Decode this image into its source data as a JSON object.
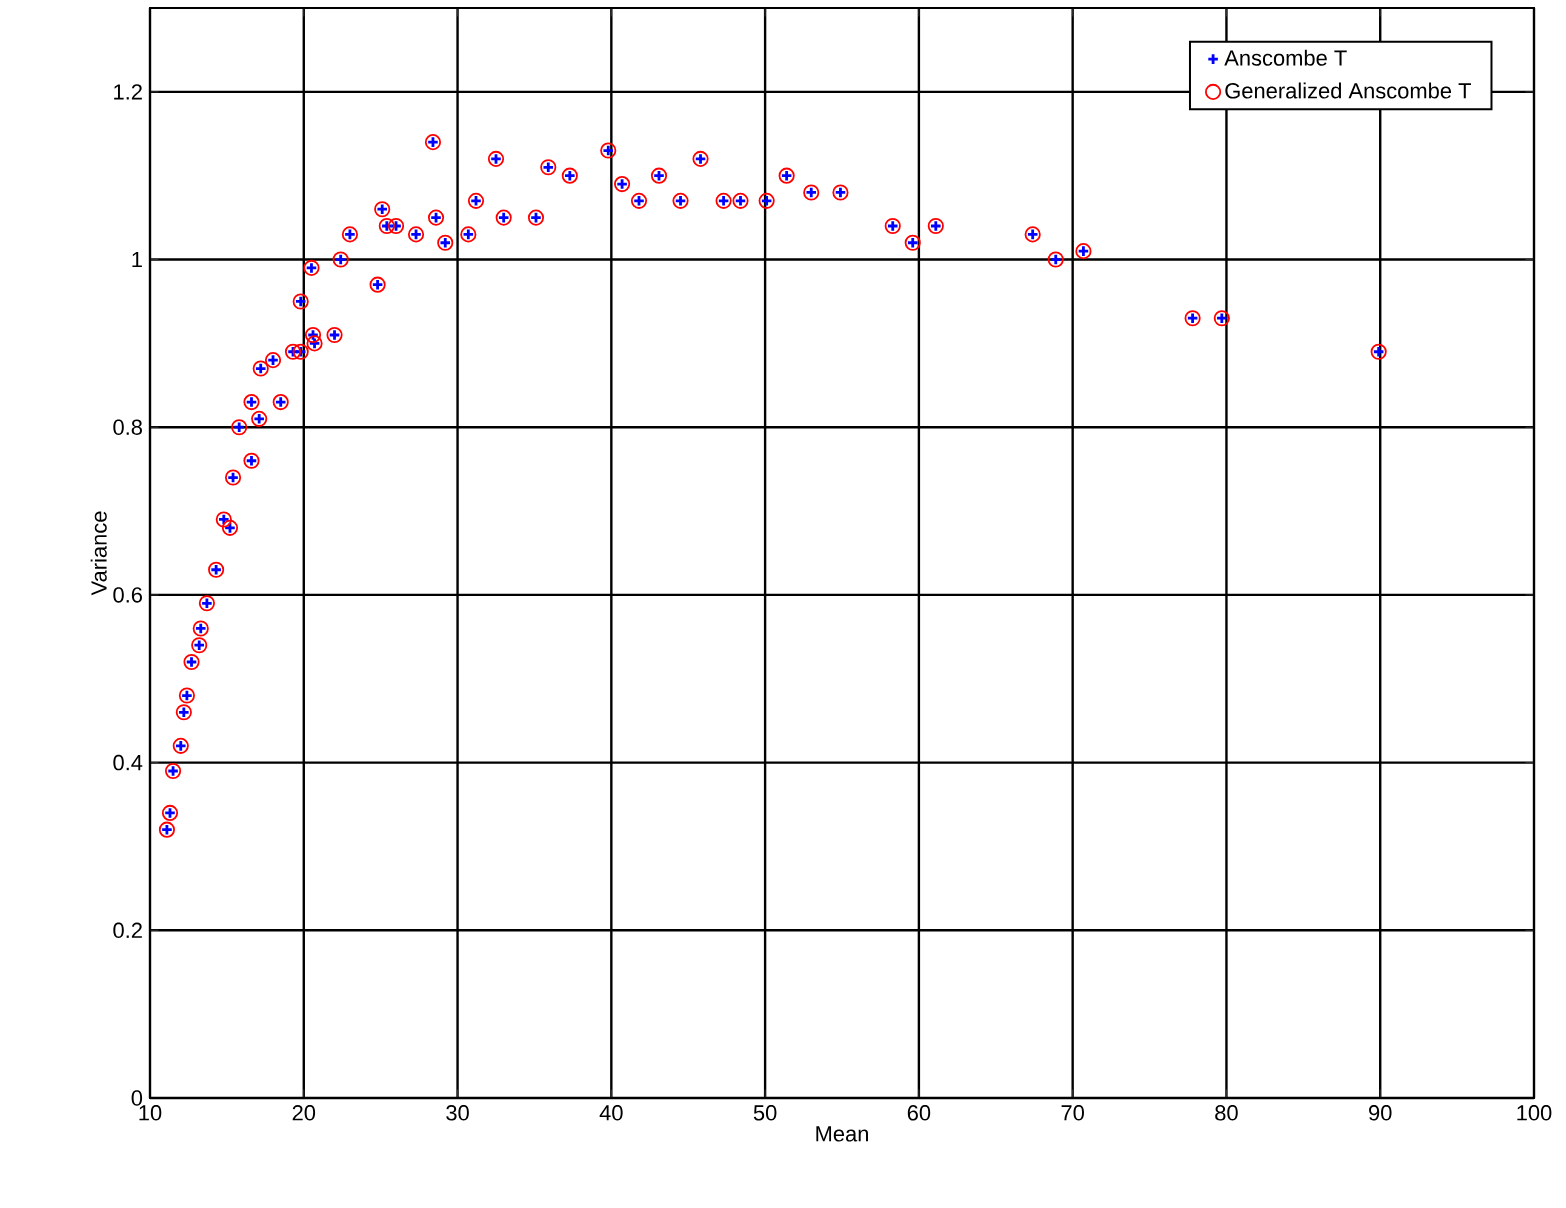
{
  "chart_data": {
    "type": "scatter",
    "xlabel": "Mean",
    "ylabel": "Variance",
    "xlim": [
      10,
      100
    ],
    "ylim": [
      0,
      1.3
    ],
    "xticks": [
      10,
      20,
      30,
      40,
      50,
      60,
      70,
      80,
      90,
      100
    ],
    "yticks": [
      0,
      0.2,
      0.4,
      0.6,
      0.8,
      1,
      1.2
    ],
    "grid": true,
    "legend": "top right",
    "x": [
      11.1,
      11.3,
      11.5,
      12.0,
      12.2,
      12.4,
      12.7,
      13.2,
      13.3,
      13.7,
      14.3,
      14.8,
      15.2,
      15.4,
      16.6,
      15.8,
      16.6,
      17.1,
      18.5,
      17.2,
      18.0,
      19.3,
      20.7,
      19.8,
      19.8,
      20.6,
      22.0,
      20.5,
      22.4,
      23.0,
      24.8,
      25.1,
      25.4,
      26.0,
      27.3,
      28.4,
      28.6,
      29.2,
      30.7,
      31.2,
      32.5,
      33.0,
      35.1,
      35.9,
      37.3,
      39.8,
      40.7,
      41.8,
      43.1,
      44.5,
      45.8,
      47.3,
      48.4,
      50.1,
      51.4,
      53.0,
      54.9,
      58.3,
      59.6,
      61.1,
      67.4,
      68.9,
      70.7,
      77.8,
      79.7,
      89.9
    ],
    "series": [
      {
        "name": "Anscombe T",
        "color": "#0000ff",
        "marker": "cross",
        "values": [
          0.32,
          0.34,
          0.39,
          0.42,
          0.46,
          0.48,
          0.52,
          0.54,
          0.56,
          0.59,
          0.63,
          0.69,
          0.68,
          0.74,
          0.76,
          0.8,
          0.83,
          0.81,
          0.83,
          0.87,
          0.88,
          0.89,
          0.9,
          0.89,
          0.95,
          0.91,
          0.91,
          0.99,
          1.0,
          1.03,
          0.97,
          1.06,
          1.04,
          1.04,
          1.03,
          1.14,
          1.05,
          1.02,
          1.03,
          1.07,
          1.12,
          1.05,
          1.05,
          1.11,
          1.1,
          1.13,
          1.09,
          1.07,
          1.1,
          1.07,
          1.12,
          1.07,
          1.07,
          1.07,
          1.1,
          1.08,
          1.08,
          1.04,
          1.02,
          1.04,
          1.03,
          1.0,
          1.01,
          0.93,
          0.93,
          0.89
        ]
      },
      {
        "name": "Generalized Anscombe T",
        "color": "#ff0000",
        "marker": "circle",
        "values": [
          0.32,
          0.34,
          0.39,
          0.42,
          0.46,
          0.48,
          0.52,
          0.54,
          0.56,
          0.59,
          0.63,
          0.69,
          0.68,
          0.74,
          0.76,
          0.8,
          0.83,
          0.81,
          0.83,
          0.87,
          0.88,
          0.89,
          0.9,
          0.89,
          0.95,
          0.91,
          0.91,
          0.99,
          1.0,
          1.03,
          0.97,
          1.06,
          1.04,
          1.04,
          1.03,
          1.14,
          1.05,
          1.02,
          1.03,
          1.07,
          1.12,
          1.05,
          1.05,
          1.11,
          1.1,
          1.13,
          1.09,
          1.07,
          1.1,
          1.07,
          1.12,
          1.07,
          1.07,
          1.07,
          1.1,
          1.08,
          1.08,
          1.04,
          1.02,
          1.04,
          1.03,
          1.0,
          1.01,
          0.93,
          0.93,
          0.89
        ]
      }
    ]
  }
}
